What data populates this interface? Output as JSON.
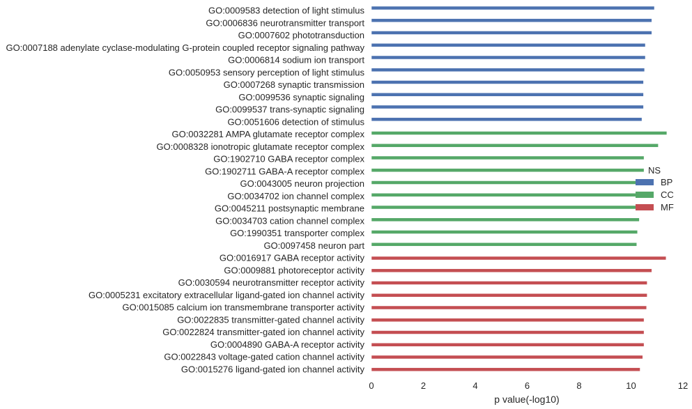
{
  "chart_data": {
    "type": "bar",
    "orientation": "horizontal",
    "xlabel": "p value(-log10)",
    "xlim": [
      0,
      12
    ],
    "x_ticks": [
      "0",
      "2",
      "4",
      "6",
      "8",
      "10",
      "12"
    ],
    "grid": false,
    "legend": {
      "title": "NS",
      "placement": "right",
      "entries": [
        "BP",
        "CC",
        "MF"
      ]
    },
    "colors": {
      "BP": "#4c72b0",
      "CC": "#55a868",
      "MF": "#c44e52"
    },
    "categories": [
      "GO:0009583 detection of light stimulus",
      "GO:0006836 neurotransmitter transport",
      "GO:0007602 phototransduction",
      "GO:0007188 adenylate cyclase-modulating G-protein coupled receptor signaling pathway",
      "GO:0006814 sodium ion transport",
      "GO:0050953 sensory perception of light stimulus",
      "GO:0007268 synaptic transmission",
      "GO:0099536 synaptic signaling",
      "GO:0099537 trans-synaptic signaling",
      "GO:0051606 detection of stimulus",
      "GO:0032281 AMPA glutamate receptor complex",
      "GO:0008328 ionotropic glutamate receptor complex",
      "GO:1902710 GABA receptor complex",
      "GO:1902711 GABA-A receptor complex",
      "GO:0043005 neuron projection",
      "GO:0034702 ion channel complex",
      "GO:0045211 postsynaptic membrane",
      "GO:0034703 cation channel complex",
      "GO:1990351 transporter complex",
      "GO:0097458 neuron part",
      "GO:0016917 GABA receptor activity",
      "GO:0009881 photoreceptor activity",
      "GO:0030594 neurotransmitter receptor activity",
      "GO:0005231 excitatory extracellular ligand-gated ion channel activity",
      "GO:0015085 calcium ion transmembrane transporter activity",
      "GO:0022835 transmitter-gated channel activity",
      "GO:0022824 transmitter-gated ion channel activity",
      "GO:0004890 GABA-A receptor activity",
      "GO:0022843 voltage-gated cation channel activity",
      "GO:0015276 ligand-gated ion channel activity"
    ],
    "values": [
      10.9,
      10.8,
      10.8,
      10.55,
      10.55,
      10.52,
      10.48,
      10.48,
      10.48,
      10.42,
      11.38,
      11.05,
      10.5,
      10.5,
      10.45,
      10.32,
      10.32,
      10.32,
      10.25,
      10.22,
      11.35,
      10.8,
      10.62,
      10.62,
      10.6,
      10.5,
      10.5,
      10.5,
      10.45,
      10.35
    ],
    "groups": [
      "BP",
      "BP",
      "BP",
      "BP",
      "BP",
      "BP",
      "BP",
      "BP",
      "BP",
      "BP",
      "CC",
      "CC",
      "CC",
      "CC",
      "CC",
      "CC",
      "CC",
      "CC",
      "CC",
      "CC",
      "MF",
      "MF",
      "MF",
      "MF",
      "MF",
      "MF",
      "MF",
      "MF",
      "MF",
      "MF"
    ]
  }
}
